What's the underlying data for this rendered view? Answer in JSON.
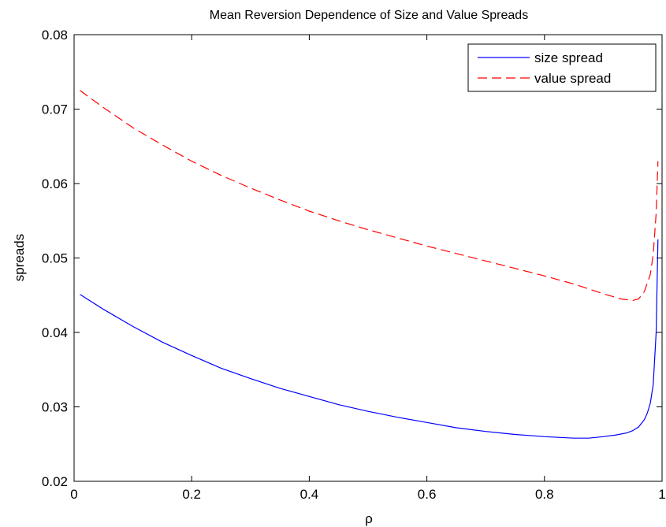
{
  "chart_data": {
    "type": "line",
    "title": "Mean Reversion Dependence of Size and Value Spreads",
    "xlabel": "ρ",
    "ylabel": "spreads",
    "xlim": [
      0,
      1
    ],
    "ylim": [
      0.02,
      0.08
    ],
    "xticks": [
      0,
      0.2,
      0.4,
      0.6,
      0.8,
      1
    ],
    "xtick_labels": [
      "0",
      "0.2",
      "0.4",
      "0.6",
      "0.8",
      "1"
    ],
    "yticks": [
      0.02,
      0.03,
      0.04,
      0.05,
      0.06,
      0.07,
      0.08
    ],
    "ytick_labels": [
      "0.02",
      "0.03",
      "0.04",
      "0.05",
      "0.06",
      "0.07",
      "0.08"
    ],
    "grid": false,
    "legend_position": "top-right",
    "series": [
      {
        "name": "size spread",
        "color": "#0000ff",
        "dash": "solid",
        "x": [
          0.01,
          0.05,
          0.1,
          0.15,
          0.2,
          0.25,
          0.3,
          0.35,
          0.4,
          0.45,
          0.5,
          0.55,
          0.6,
          0.65,
          0.7,
          0.75,
          0.8,
          0.85,
          0.875,
          0.9,
          0.92,
          0.94,
          0.95,
          0.96,
          0.97,
          0.975,
          0.98,
          0.985,
          0.99,
          0.993
        ],
        "y": [
          0.0451,
          0.0431,
          0.0408,
          0.0387,
          0.0369,
          0.0352,
          0.0338,
          0.0325,
          0.0314,
          0.0303,
          0.0294,
          0.0286,
          0.0279,
          0.0272,
          0.0267,
          0.0263,
          0.026,
          0.0258,
          0.0258,
          0.026,
          0.0262,
          0.0265,
          0.0268,
          0.0273,
          0.0283,
          0.0292,
          0.0305,
          0.033,
          0.04,
          0.0525
        ]
      },
      {
        "name": "value spread",
        "color": "#ff0000",
        "dash": "dashed",
        "x": [
          0.01,
          0.05,
          0.1,
          0.15,
          0.2,
          0.25,
          0.3,
          0.35,
          0.4,
          0.45,
          0.5,
          0.55,
          0.6,
          0.65,
          0.7,
          0.75,
          0.8,
          0.85,
          0.9,
          0.93,
          0.95,
          0.96,
          0.97,
          0.98,
          0.985,
          0.99,
          0.993
        ],
        "y": [
          0.0725,
          0.0702,
          0.0675,
          0.0652,
          0.063,
          0.0611,
          0.0594,
          0.0578,
          0.0563,
          0.055,
          0.0538,
          0.0527,
          0.0516,
          0.0506,
          0.0496,
          0.0486,
          0.0476,
          0.0465,
          0.0452,
          0.0445,
          0.0443,
          0.0445,
          0.0455,
          0.0478,
          0.0505,
          0.056,
          0.063
        ]
      }
    ]
  }
}
